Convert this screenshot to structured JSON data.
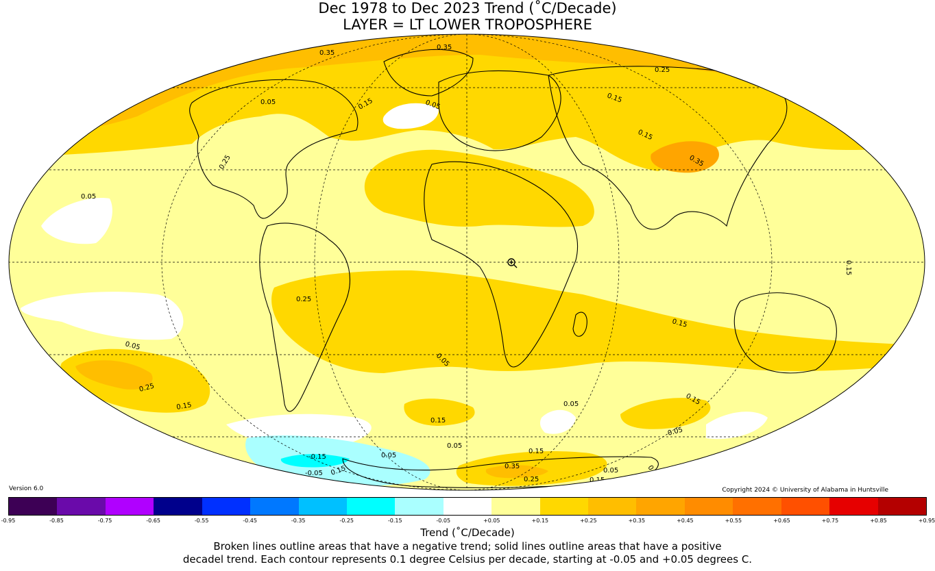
{
  "title": {
    "line1": "Dec 1978 to Dec 2023 Trend (˚C/Decade)",
    "line2": "LAYER = LT LOWER TROPOSPHERE"
  },
  "version": "Version 6.0",
  "copyright": "Copyright 2024 © University of Alabama in Huntsville",
  "contour_labels": [
    "0.35",
    "0.35",
    "0.25",
    "0.15",
    "0.15",
    "0.35",
    "0.05",
    "0.05",
    "0.15",
    "0.25",
    "0.05",
    "0.05",
    "0.25",
    "0.15",
    "0.25",
    "0.15",
    "0.15",
    "0.05",
    "0.05",
    "0.15",
    "0.05",
    "0.05",
    "0.15",
    "0.05",
    "-0.15",
    "0.05",
    "-0.05",
    "0.15",
    "0.35",
    "0.25",
    "0.15",
    "0.05",
    "0.15"
  ],
  "colorbar": {
    "colors": [
      "#3d0055",
      "#6a0aaa",
      "#b000ff",
      "#00008c",
      "#0030ff",
      "#0078ff",
      "#00c0ff",
      "#00ffff",
      "#aaffff",
      "#ffffff",
      "#ffff99",
      "#ffd800",
      "#ffbe00",
      "#ffa500",
      "#ff8c00",
      "#ff7000",
      "#ff5000",
      "#e60000",
      "#b40000"
    ],
    "ticks": [
      "-0.95",
      "-0.85",
      "-0.75",
      "-0.65",
      "-0.55",
      "-0.45",
      "-0.35",
      "-0.25",
      "-0.15",
      "-0.05",
      "+0.05",
      "+0.15",
      "+0.25",
      "+0.35",
      "+0.45",
      "+0.55",
      "+0.65",
      "+0.75",
      "+0.85",
      "+0.95"
    ],
    "label": "Trend (˚C/Decade)"
  },
  "note": {
    "line1": "Broken lines outline areas that have a negative trend; solid lines outline areas that have a positive",
    "line2": "decadel trend. Each contour represents 0.1 degree Celsius per decade, starting at -0.05 and +0.05 degrees C."
  }
}
